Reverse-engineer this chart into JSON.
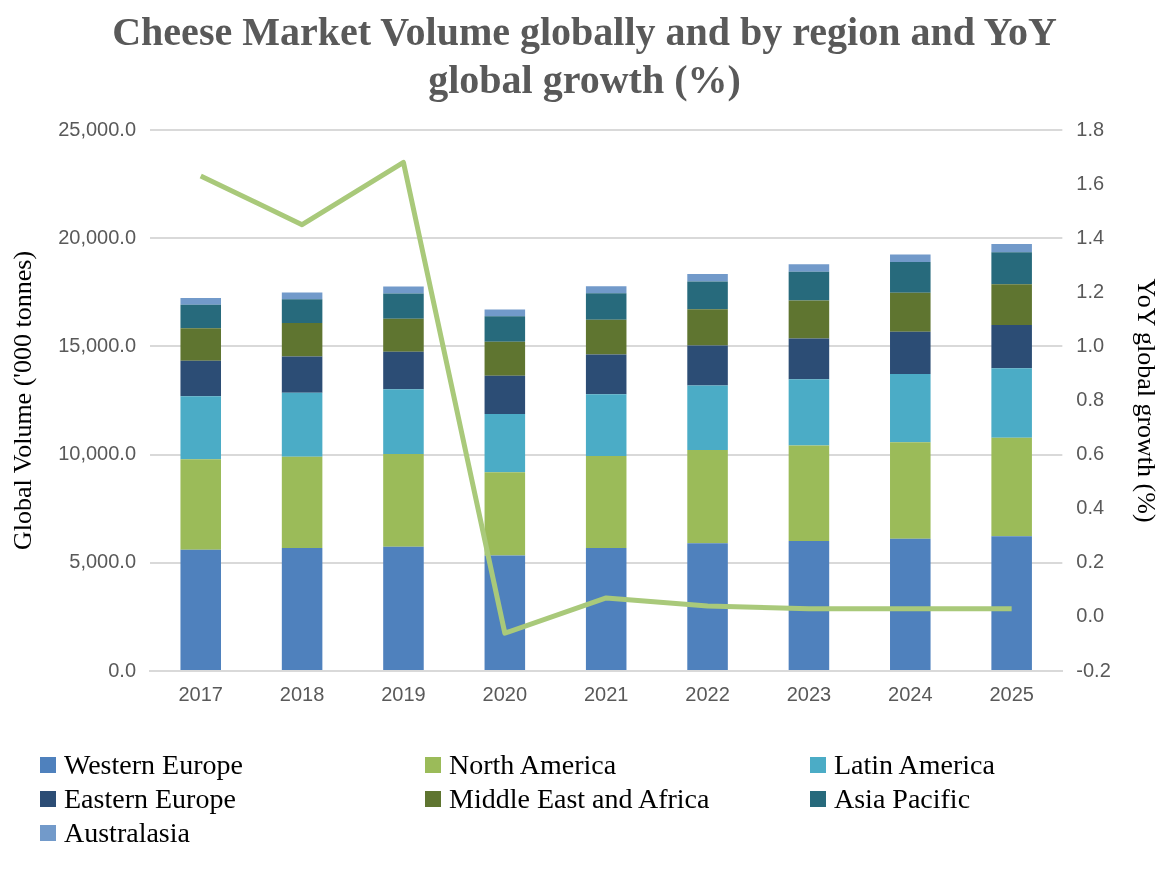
{
  "chart_data": {
    "type": "bar",
    "title": "Cheese Market Volume globally and by region and YoY global growth (%)",
    "ylabel": "Global Volume ('000 tonnes)",
    "y2label": "YoY global growth (%)",
    "categories": [
      "2017",
      "2018",
      "2019",
      "2020",
      "2021",
      "2022",
      "2023",
      "2024",
      "2025"
    ],
    "stacked": true,
    "grid": "y",
    "legend": "bottom",
    "series": [
      {
        "name": "Western Europe",
        "color": "#4f81bd",
        "values": [
          5600,
          5680,
          5740,
          5340,
          5680,
          5900,
          6010,
          6110,
          6230
        ]
      },
      {
        "name": "North America",
        "color": "#9bbb59",
        "values": [
          4190,
          4220,
          4290,
          3840,
          4260,
          4310,
          4410,
          4460,
          4550
        ]
      },
      {
        "name": "Latin America",
        "color": "#4bacc6",
        "values": [
          2910,
          2960,
          2990,
          2700,
          2850,
          2980,
          3060,
          3150,
          3210
        ]
      },
      {
        "name": "Eastern Europe",
        "color": "#2c4d75",
        "values": [
          1640,
          1670,
          1730,
          1760,
          1840,
          1850,
          1880,
          1960,
          2000
        ]
      },
      {
        "name": "Middle East and Africa",
        "color": "#5f7530",
        "values": [
          1500,
          1550,
          1530,
          1580,
          1600,
          1680,
          1760,
          1800,
          1880
        ]
      },
      {
        "name": "Asia Pacific",
        "color": "#276a7c",
        "values": [
          1080,
          1100,
          1170,
          1170,
          1230,
          1280,
          1330,
          1420,
          1480
        ]
      },
      {
        "name": "Australasia",
        "color": "#729aca",
        "values": [
          320,
          310,
          320,
          310,
          320,
          340,
          350,
          350,
          380
        ]
      },
      {
        "type": "line",
        "axis": "y2",
        "color": "#a9c97a",
        "values": [
          1.63,
          1.45,
          1.68,
          -0.06,
          0.07,
          0.04,
          0.03,
          0.03,
          0.03
        ]
      }
    ],
    "ylim": [
      0,
      25000
    ],
    "yticks": [
      {
        "value": 0,
        "label": "0.0"
      },
      {
        "value": 5000,
        "label": "5,000.0"
      },
      {
        "value": 10000,
        "label": "10,000.0"
      },
      {
        "value": 15000,
        "label": "15,000.0"
      },
      {
        "value": 20000,
        "label": "20,000.0"
      },
      {
        "value": 25000,
        "label": "25,000.0"
      }
    ],
    "y2lim": [
      -0.2,
      1.8
    ],
    "y2ticks": [
      -0.2,
      {
        "value": 0,
        "label": "0.0"
      },
      0.2,
      0.4,
      0.6,
      0.8,
      {
        "value": 1,
        "label": "1.0"
      },
      1.2,
      1.4,
      1.6,
      1.8
    ]
  }
}
